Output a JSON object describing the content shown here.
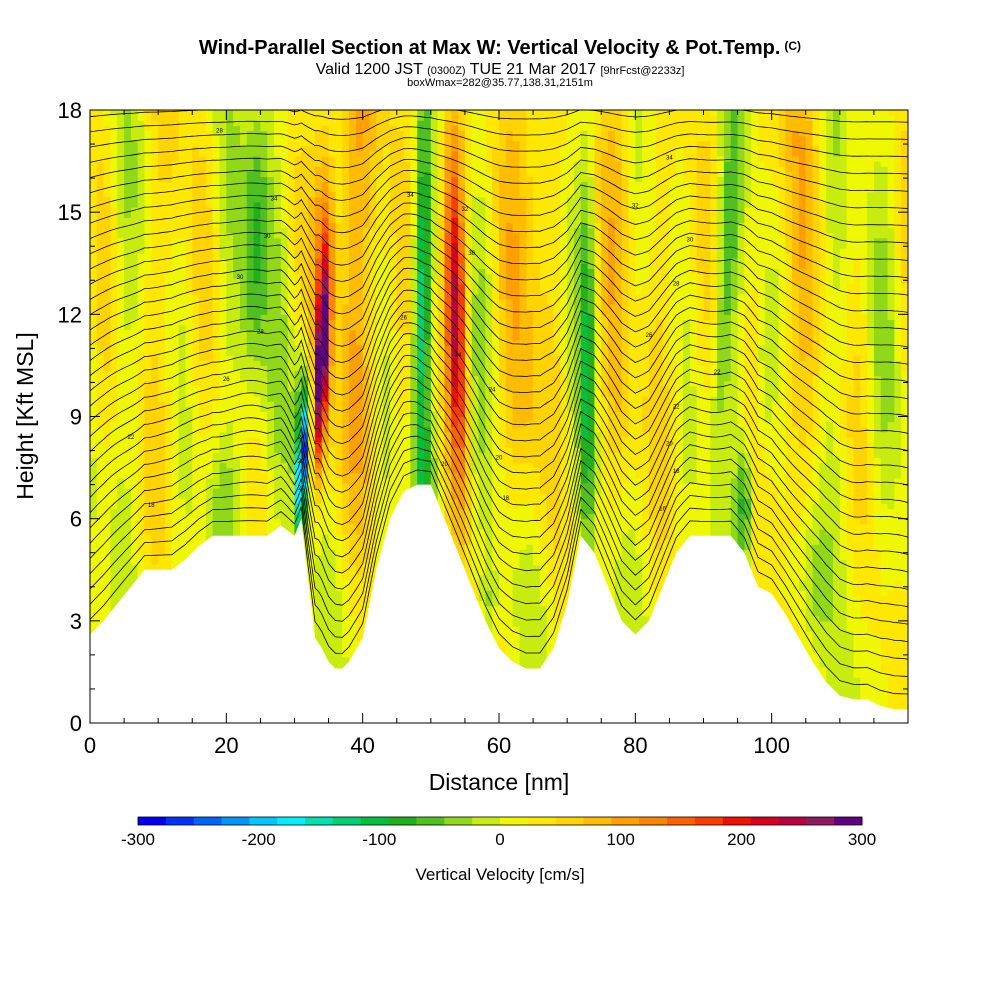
{
  "header": {
    "title": "Wind-Parallel Section at Max W: Vertical Velocity & Pot.Temp.",
    "copyright": "(C)",
    "valid_prefix": "Valid 1200 JST",
    "valid_zulu": "(0300Z)",
    "valid_date": "TUE 21 Mar 2017",
    "forecast": "[9hrFcst@2233z]",
    "boxwmax": "boxWmax=282@35.77,138.31,2151m"
  },
  "chart_data": {
    "type": "heatmap",
    "title": "Wind-Parallel Section at Max W: Vertical Velocity & Pot.Temp.",
    "xlabel": "Distance [nm]",
    "ylabel": "Height [Kft MSL]",
    "xlim": [
      0,
      120
    ],
    "ylim": [
      0,
      18
    ],
    "x_ticks": [
      0,
      20,
      40,
      60,
      80,
      100
    ],
    "y_ticks": [
      0,
      3,
      6,
      9,
      12,
      15,
      18
    ],
    "colorbar": {
      "label": "Vertical Velocity [cm/s]",
      "range": [
        -300,
        300
      ],
      "tick_values": [
        -300,
        -200,
        -100,
        0,
        100,
        200,
        300
      ],
      "tick_labels": [
        "-300",
        "-200",
        "-100",
        "0",
        "100",
        "200",
        "300"
      ],
      "colors": [
        "#0000f0",
        "#0032f8",
        "#0064fa",
        "#0096fc",
        "#00c8fd",
        "#00f0ff",
        "#00e0b0",
        "#00d070",
        "#00c040",
        "#20b020",
        "#50c020",
        "#90d818",
        "#c8ec10",
        "#f0f800",
        "#ffe800",
        "#ffd400",
        "#ffbc00",
        "#ffa000",
        "#ff8400",
        "#ff6000",
        "#ff3c00",
        "#f01000",
        "#d80020",
        "#b80040",
        "#901860",
        "#600080"
      ]
    },
    "terrain": {
      "description_units": "distance nm -> terrain height kft",
      "x": [
        0,
        2,
        4,
        6,
        8,
        10,
        12,
        14,
        16,
        18,
        20,
        22,
        24,
        26,
        28,
        30,
        31,
        32,
        33,
        34,
        35,
        36,
        37,
        38,
        40,
        42,
        44,
        46,
        48,
        50,
        52,
        54,
        56,
        58,
        60,
        62,
        64,
        66,
        68,
        70,
        72,
        74,
        76,
        78,
        80,
        82,
        84,
        86,
        88,
        90,
        92,
        94,
        96,
        98,
        100,
        102,
        104,
        106,
        108,
        110,
        112,
        114,
        116,
        118,
        120
      ],
      "y": [
        2.6,
        3.0,
        3.5,
        4.0,
        4.5,
        4.5,
        4.5,
        4.8,
        5.2,
        5.5,
        5.5,
        5.5,
        5.5,
        5.5,
        5.8,
        5.5,
        6.0,
        4.2,
        2.5,
        2.2,
        1.8,
        1.6,
        1.6,
        1.8,
        2.5,
        4.5,
        6.0,
        6.8,
        7.0,
        7.0,
        6.0,
        5.0,
        4.0,
        3.0,
        2.2,
        1.8,
        1.6,
        1.6,
        2.2,
        3.5,
        5.5,
        5.0,
        4.0,
        3.0,
        2.6,
        3.0,
        4.0,
        5.0,
        5.5,
        5.5,
        5.5,
        5.5,
        5.0,
        4.0,
        3.8,
        3.2,
        2.5,
        1.8,
        1.2,
        0.8,
        0.7,
        0.7,
        0.5,
        0.4,
        0.4
      ]
    },
    "theta_labels": [
      {
        "x": 19,
        "y": 17.4,
        "text": "28"
      },
      {
        "x": 27,
        "y": 15.4,
        "text": "34"
      },
      {
        "x": 26,
        "y": 14.3,
        "text": "30"
      },
      {
        "x": 22,
        "y": 13.1,
        "text": "30"
      },
      {
        "x": 25,
        "y": 11.5,
        "text": "28"
      },
      {
        "x": 20,
        "y": 10.1,
        "text": "26"
      },
      {
        "x": 6,
        "y": 8.4,
        "text": "22"
      },
      {
        "x": 9,
        "y": 6.4,
        "text": "18"
      },
      {
        "x": 47,
        "y": 15.5,
        "text": "34"
      },
      {
        "x": 55,
        "y": 15.1,
        "text": "32"
      },
      {
        "x": 56,
        "y": 13.8,
        "text": "30"
      },
      {
        "x": 46,
        "y": 11.9,
        "text": "26"
      },
      {
        "x": 54,
        "y": 10.8,
        "text": "24"
      },
      {
        "x": 59,
        "y": 9.8,
        "text": "24"
      },
      {
        "x": 52,
        "y": 7.6,
        "text": "20"
      },
      {
        "x": 60,
        "y": 7.8,
        "text": "20"
      },
      {
        "x": 61,
        "y": 6.6,
        "text": "18"
      },
      {
        "x": 31,
        "y": 8.4,
        "text": "24"
      },
      {
        "x": 31,
        "y": 7.7,
        "text": "22"
      },
      {
        "x": 31,
        "y": 6.9,
        "text": "20"
      },
      {
        "x": 85,
        "y": 16.6,
        "text": "34"
      },
      {
        "x": 80,
        "y": 15.2,
        "text": "32"
      },
      {
        "x": 88,
        "y": 14.2,
        "text": "30"
      },
      {
        "x": 86,
        "y": 12.9,
        "text": "28"
      },
      {
        "x": 82,
        "y": 11.4,
        "text": "26"
      },
      {
        "x": 92,
        "y": 10.3,
        "text": "22"
      },
      {
        "x": 86,
        "y": 9.3,
        "text": "22"
      },
      {
        "x": 85,
        "y": 8.2,
        "text": "20"
      },
      {
        "x": 86,
        "y": 7.4,
        "text": "18"
      },
      {
        "x": 84,
        "y": 6.3,
        "text": "16"
      }
    ]
  }
}
